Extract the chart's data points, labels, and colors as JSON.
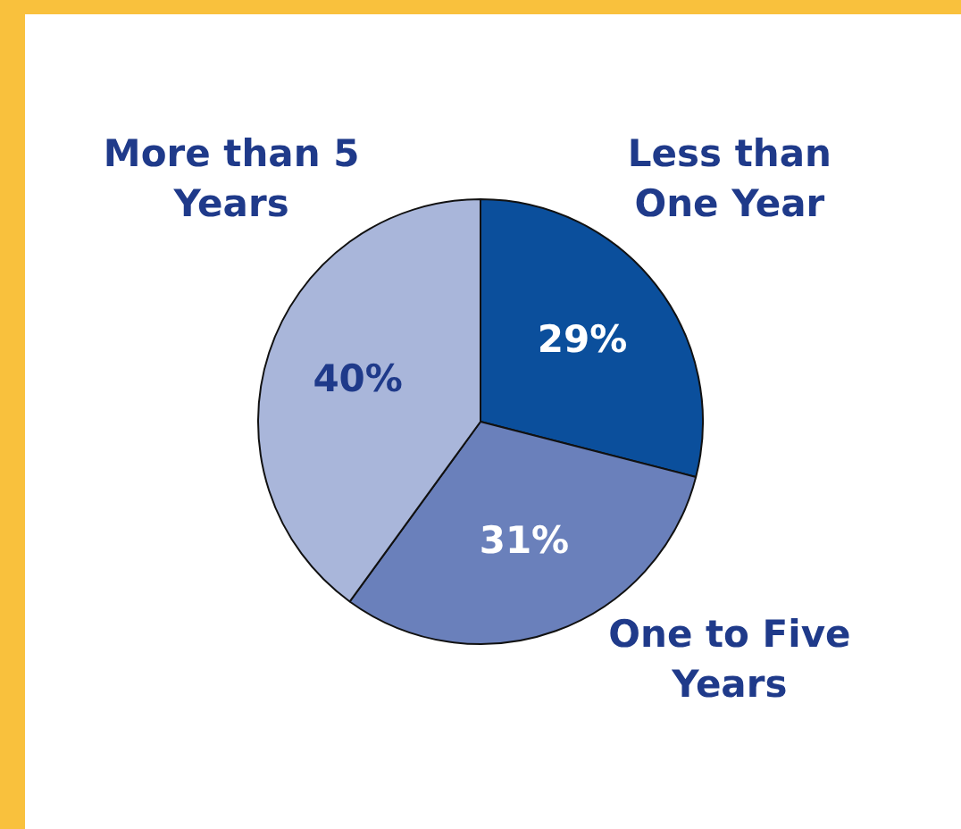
{
  "chart_data": {
    "type": "pie",
    "categories": [
      "Less than One Year",
      "One to Five Years",
      "More than 5 Years"
    ],
    "values": [
      29,
      31,
      40
    ],
    "colors": [
      "#0b4f9c",
      "#6a80bb",
      "#a9b6da"
    ],
    "value_labels": [
      "29%",
      "31%",
      "40%"
    ],
    "legend": false
  }
}
